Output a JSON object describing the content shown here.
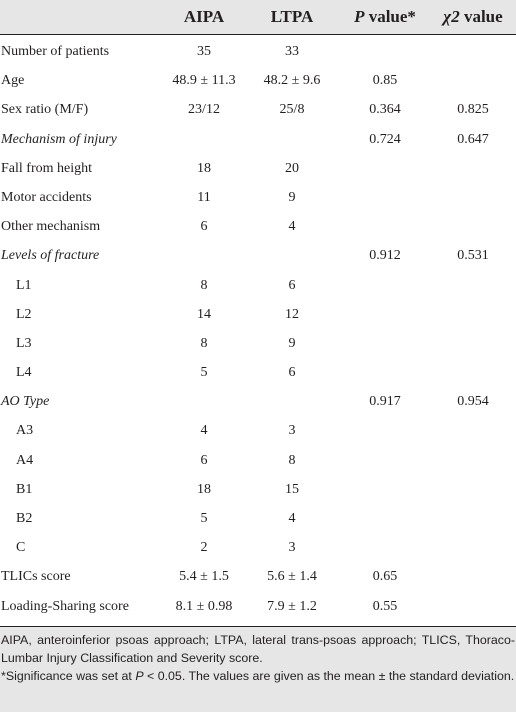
{
  "header": {
    "col_aipa": "AIPA",
    "col_ltpa": "LTPA",
    "col_p_symbol": "P",
    "col_p_rest": " value*",
    "col_chi_symbol": "χ2",
    "col_chi_rest": " value"
  },
  "rows": [
    {
      "label": "Number of patients",
      "aipa": "35",
      "ltpa": "33",
      "p": "",
      "chi": ""
    },
    {
      "label": "Age",
      "aipa": "48.9 ± 11.3",
      "ltpa": "48.2 ± 9.6",
      "p": "0.85",
      "chi": ""
    },
    {
      "label": "Sex ratio (M/F)",
      "aipa": "23/12",
      "ltpa": "25/8",
      "p": "0.364",
      "chi": "0.825"
    },
    {
      "label": "Mechanism of injury",
      "aipa": "",
      "ltpa": "",
      "p": "0.724",
      "chi": "0.647"
    },
    {
      "label": "Fall from height",
      "aipa": "18",
      "ltpa": "20",
      "p": "",
      "chi": ""
    },
    {
      "label": "Motor accidents",
      "aipa": "11",
      "ltpa": "9",
      "p": "",
      "chi": ""
    },
    {
      "label": "Other mechanism",
      "aipa": "6",
      "ltpa": "4",
      "p": "",
      "chi": ""
    },
    {
      "label": "Levels of fracture",
      "aipa": "",
      "ltpa": "",
      "p": "0.912",
      "chi": "0.531"
    },
    {
      "label": "L1",
      "aipa": "8",
      "ltpa": "6",
      "p": "",
      "chi": ""
    },
    {
      "label": "L2",
      "aipa": "14",
      "ltpa": "12",
      "p": "",
      "chi": ""
    },
    {
      "label": "L3",
      "aipa": "8",
      "ltpa": "9",
      "p": "",
      "chi": ""
    },
    {
      "label": "L4",
      "aipa": "5",
      "ltpa": "6",
      "p": "",
      "chi": ""
    },
    {
      "label": "AO Type",
      "aipa": "",
      "ltpa": "",
      "p": "0.917",
      "chi": "0.954"
    },
    {
      "label": "A3",
      "aipa": "4",
      "ltpa": "3",
      "p": "",
      "chi": ""
    },
    {
      "label": "A4",
      "aipa": "6",
      "ltpa": "8",
      "p": "",
      "chi": ""
    },
    {
      "label": "B1",
      "aipa": "18",
      "ltpa": "15",
      "p": "",
      "chi": ""
    },
    {
      "label": "B2",
      "aipa": "5",
      "ltpa": "4",
      "p": "",
      "chi": ""
    },
    {
      "label": "C",
      "aipa": "2",
      "ltpa": "3",
      "p": "",
      "chi": ""
    },
    {
      "label": "TLICs score",
      "aipa": "5.4 ± 1.5",
      "ltpa": "5.6 ± 1.4",
      "p": "0.65",
      "chi": ""
    },
    {
      "label": "Loading-Sharing score",
      "aipa": "8.1 ± 0.98",
      "ltpa": "7.9 ± 1.2",
      "p": "0.55",
      "chi": ""
    }
  ],
  "footnote": {
    "line1": "AIPA, anteroinferior psoas approach; LTPA, lateral trans-psoas approach; TLICS, Thoraco-Lumbar Injury Classification and Severity score.",
    "line2_a": "*Significance was set at ",
    "line2_p": "P",
    "line2_b": " < 0.05. The values are given as the mean ± the standard deviation."
  }
}
